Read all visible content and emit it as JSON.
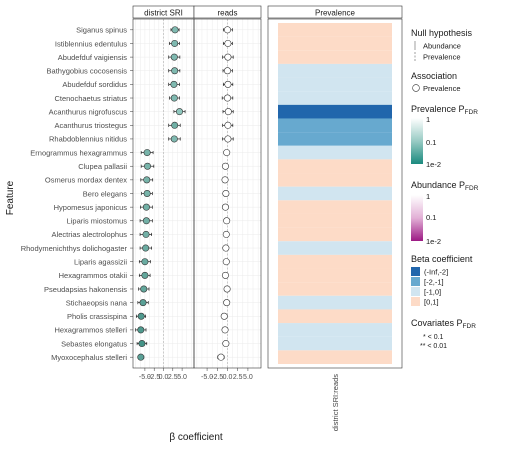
{
  "chart_data": {
    "type": "scatter",
    "ylabel": "Feature",
    "xlabel": "β coefficient",
    "features": [
      "Siganus spinus",
      "Istiblennius edentulus",
      "Abudefduf vaigiensis",
      "Bathygobius cocosensis",
      "Abudefduf sordidus",
      "Ctenochaetus striatus",
      "Acanthurus nigrofuscus",
      "Acanthurus triostegus",
      "Rhabdoblennius nitidus",
      "Ernogrammus hexagrammus",
      "Clupea pallasii",
      "Osmerus mordax dentex",
      "Bero elegans",
      "Hypomesus japonicus",
      "Liparis miostomus",
      "Alectrias alectrolophus",
      "Rhodymenichthys dolichogaster",
      "Liparis agassizii",
      "Hexagrammos otakii",
      "Pseudapsias hakonensis",
      "Stichaeopsis nana",
      "Pholis crassispina",
      "Hexagrammos stelleri",
      "Sebastes elongatus",
      "Myoxocephalus stelleri"
    ],
    "panels": [
      {
        "title": "district SRI",
        "xlim": [
          -8.2,
          8.2
        ],
        "xticks": [
          -5.0,
          -2.5,
          0.0,
          2.5,
          5.0
        ],
        "xticklabels": [
          "-5.0",
          "-2.5",
          "0.0",
          "2.5",
          "5.0"
        ],
        "estimate": [
          3.1,
          3.0,
          2.9,
          3.0,
          2.8,
          2.9,
          4.3,
          3.0,
          2.9,
          -4.4,
          -4.3,
          -4.5,
          -4.4,
          -4.6,
          -4.6,
          -4.7,
          -4.8,
          -5.0,
          -5.0,
          -5.3,
          -5.5,
          -6.0,
          -6.1,
          -5.8,
          -6.1
        ],
        "ci_low": [
          2.0,
          1.6,
          1.4,
          1.4,
          1.4,
          1.6,
          2.8,
          1.4,
          1.4,
          -6.0,
          -6.0,
          -6.1,
          -5.9,
          -6.2,
          -6.3,
          -6.3,
          -6.3,
          -6.5,
          -6.5,
          -6.7,
          -6.9,
          -7.3,
          -7.5,
          -7.1,
          -6.8
        ],
        "ci_high": [
          4.2,
          4.3,
          4.4,
          4.4,
          4.3,
          4.3,
          5.8,
          4.5,
          4.5,
          -2.8,
          -2.6,
          -2.9,
          -3.0,
          -3.0,
          -3.0,
          -3.2,
          -3.2,
          -3.5,
          -3.6,
          -3.9,
          -4.1,
          -4.8,
          -4.7,
          -4.5,
          -5.3
        ],
        "fill": [
          "#7fb9b0",
          "#7fb9b0",
          "#7fb9b0",
          "#7fb9b0",
          "#7fb9b0",
          "#7fb9b0",
          "#8ec6bd",
          "#6fafa5",
          "#7fb9b0",
          "#78b4aa",
          "#78b4aa",
          "#78b4aa",
          "#78b4aa",
          "#72b0a6",
          "#72b0a6",
          "#72b0a6",
          "#6aaba1",
          "#6aaba1",
          "#62a69b",
          "#62a69b",
          "#5aa096",
          "#4f998e",
          "#4f998e",
          "#449387",
          "#5aa096"
        ]
      },
      {
        "title": "reads",
        "xlim": [
          -8.2,
          8.2
        ],
        "xticks": [
          -5.0,
          -2.5,
          0.0,
          2.5,
          5.0
        ],
        "xticklabels": [
          "-5.0",
          "-2.5",
          "0.0",
          "2.5",
          "5.0"
        ],
        "estimate": [
          0.0,
          0.1,
          0.1,
          0.0,
          0.1,
          0.0,
          0.2,
          0.1,
          0.1,
          -0.2,
          -0.5,
          -0.6,
          -0.4,
          -0.5,
          -0.2,
          -0.3,
          -0.4,
          -0.3,
          -0.5,
          -0.1,
          -0.2,
          -0.8,
          -0.6,
          -0.4,
          -1.6
        ],
        "ci_low": [
          -1.0,
          -1.0,
          -1.2,
          -1.1,
          -1.0,
          -1.3,
          -1.1,
          -1.2,
          -1.2,
          -0.2,
          -0.5,
          -0.6,
          -0.4,
          -0.5,
          -0.2,
          -0.3,
          -0.4,
          -0.3,
          -0.5,
          -0.1,
          -0.2,
          -1.2,
          -0.6,
          -0.4,
          -2.4
        ],
        "ci_high": [
          1.2,
          1.2,
          1.4,
          1.2,
          1.3,
          1.3,
          1.4,
          1.3,
          1.4,
          -0.2,
          -0.5,
          -0.6,
          -0.4,
          -0.5,
          -0.2,
          -0.3,
          -0.4,
          -0.3,
          -0.5,
          -0.1,
          -0.2,
          -0.4,
          -0.6,
          -0.4,
          -0.8
        ],
        "fill": [
          "#ffffff",
          "#ffffff",
          "#ffffff",
          "#ffffff",
          "#ffffff",
          "#ffffff",
          "#ffffff",
          "#ffffff",
          "#ffffff",
          "#ffffff",
          "#ffffff",
          "#ffffff",
          "#ffffff",
          "#ffffff",
          "#ffffff",
          "#ffffff",
          "#ffffff",
          "#ffffff",
          "#ffffff",
          "#ffffff",
          "#ffffff",
          "#ffffff",
          "#ffffff",
          "#ffffff",
          "#ffffff"
        ]
      }
    ],
    "heatmap": {
      "title": "Prevalence",
      "x_label": "district SRI:reads",
      "categories": [
        "[0,1]",
        "[0,1]",
        "[0,1]",
        "[-1,0]",
        "[-1,0]",
        "[-1,0]",
        "(-Inf,-2]",
        "[-2,-1]",
        "[-2,-1]",
        "[-1,0]",
        "[0,1]",
        "[0,1]",
        "[-1,0]",
        "[0,1]",
        "[0,1]",
        "[0,1]",
        "[-1,0]",
        "[0,1]",
        "[0,1]",
        "[0,1]",
        "[-1,0]",
        "[0,1]",
        "[-1,0]",
        "[-1,0]",
        "[0,1]"
      ]
    },
    "legends": {
      "null_hypothesis": {
        "title": "Null hypothesis",
        "items": [
          "Abundance",
          "Prevalence"
        ]
      },
      "association": {
        "title": "Association",
        "items": [
          "Prevalence"
        ]
      },
      "prevalence_pfdr": {
        "title": "Prevalence P",
        "subscript": "FDR",
        "labels": [
          "1",
          "0.1",
          "1e-2"
        ],
        "colors": [
          "#ffffff",
          "#99cbc4",
          "#1b8a7e"
        ]
      },
      "abundance_pfdr": {
        "title": "Abundance P",
        "subscript": "FDR",
        "labels": [
          "1",
          "0.1",
          "1e-2"
        ],
        "colors": [
          "#ffffff",
          "#e2b0d6",
          "#9c1a84"
        ]
      },
      "beta_coefficient": {
        "title": "Beta coefficient",
        "items": [
          {
            "label": "(-Inf,-2]",
            "color": "#2166ac"
          },
          {
            "label": "[-2,-1]",
            "color": "#67a9cf"
          },
          {
            "label": "[-1,0]",
            "color": "#d1e5f0"
          },
          {
            "label": "[0,1]",
            "color": "#fddbc7"
          }
        ]
      },
      "covariates_pfdr": {
        "title": "Covariates P",
        "subscript": "FDR",
        "notes": [
          "* < 0.1",
          "** < 0.01"
        ]
      }
    }
  }
}
